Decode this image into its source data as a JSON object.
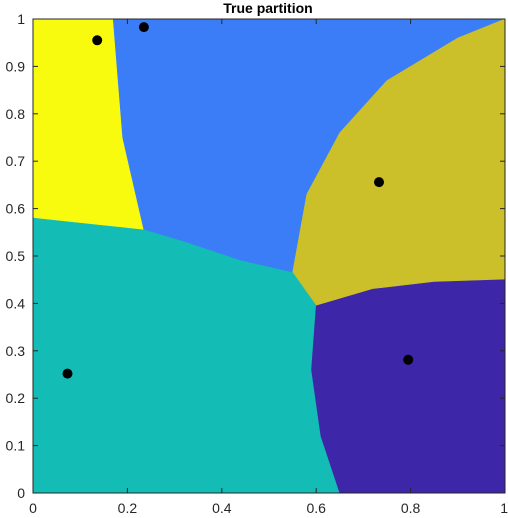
{
  "chart_data": {
    "type": "partition-map",
    "title": "True partition",
    "xlabel": "",
    "ylabel": "",
    "xlim": [
      0,
      1
    ],
    "ylim": [
      0,
      1
    ],
    "xticks": [
      0,
      0.2,
      0.4,
      0.6,
      0.8,
      1
    ],
    "xtick_labels": [
      "0",
      "0.2",
      "0.4",
      "0.6",
      "0.8",
      "1"
    ],
    "yticks": [
      0,
      0.1,
      0.2,
      0.3,
      0.4,
      0.5,
      0.6,
      0.7,
      0.8,
      0.9,
      1
    ],
    "ytick_labels": [
      "0",
      "0.1",
      "0.2",
      "0.3",
      "0.4",
      "0.5",
      "0.6",
      "0.7",
      "0.8",
      "0.9",
      "1"
    ],
    "grid": false,
    "regions": [
      {
        "id": "yellow",
        "color": "#f9fb0e",
        "polygon": [
          [
            0,
            1
          ],
          [
            0.17,
            1
          ],
          [
            0.19,
            0.75
          ],
          [
            0.235,
            0.555
          ],
          [
            0.14,
            0.565
          ],
          [
            0,
            0.58
          ]
        ]
      },
      {
        "id": "blue",
        "color": "#3a7df7",
        "polygon": [
          [
            0.17,
            1
          ],
          [
            1,
            1
          ],
          [
            0.9,
            0.96
          ],
          [
            0.75,
            0.87
          ],
          [
            0.65,
            0.76
          ],
          [
            0.58,
            0.63
          ],
          [
            0.55,
            0.465
          ],
          [
            0.44,
            0.49
          ],
          [
            0.32,
            0.53
          ],
          [
            0.235,
            0.555
          ],
          [
            0.19,
            0.75
          ]
        ]
      },
      {
        "id": "olive",
        "color": "#cbc02a",
        "polygon": [
          [
            1,
            1
          ],
          [
            1,
            0.45
          ],
          [
            0.85,
            0.445
          ],
          [
            0.72,
            0.43
          ],
          [
            0.6,
            0.395
          ],
          [
            0.55,
            0.465
          ],
          [
            0.58,
            0.63
          ],
          [
            0.65,
            0.76
          ],
          [
            0.75,
            0.87
          ],
          [
            0.9,
            0.96
          ]
        ]
      },
      {
        "id": "teal",
        "color": "#13bdb5",
        "polygon": [
          [
            0,
            0
          ],
          [
            0.65,
            0
          ],
          [
            0.61,
            0.12
          ],
          [
            0.59,
            0.26
          ],
          [
            0.6,
            0.395
          ],
          [
            0.55,
            0.465
          ],
          [
            0.44,
            0.49
          ],
          [
            0.32,
            0.53
          ],
          [
            0.235,
            0.555
          ],
          [
            0.14,
            0.565
          ],
          [
            0,
            0.58
          ]
        ]
      },
      {
        "id": "indigo",
        "color": "#3e26a8",
        "polygon": [
          [
            0.65,
            0
          ],
          [
            1,
            0
          ],
          [
            1,
            0.45
          ],
          [
            0.85,
            0.445
          ],
          [
            0.72,
            0.43
          ],
          [
            0.6,
            0.395
          ],
          [
            0.59,
            0.26
          ],
          [
            0.61,
            0.12
          ]
        ]
      }
    ],
    "points": [
      {
        "x": 0.136,
        "y": 0.955
      },
      {
        "x": 0.235,
        "y": 0.983
      },
      {
        "x": 0.733,
        "y": 0.656
      },
      {
        "x": 0.795,
        "y": 0.281
      },
      {
        "x": 0.073,
        "y": 0.252
      }
    ],
    "point_color": "#000000"
  }
}
